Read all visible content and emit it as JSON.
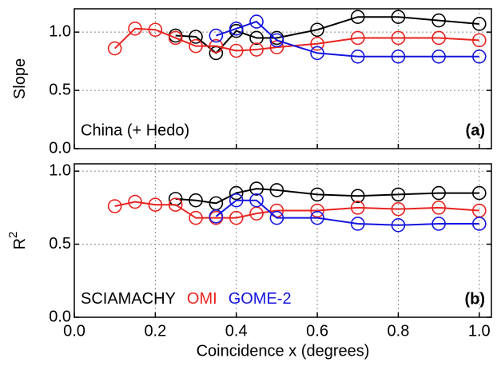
{
  "chart_data": [
    {
      "type": "line",
      "ylabel": "Slope",
      "annotation": "China (+ Hedo)",
      "panel_label": "(a)",
      "xlim": [
        0,
        1.03
      ],
      "ylim": [
        0,
        1.2
      ],
      "xticks": [
        0,
        0.2,
        0.4,
        0.6,
        0.8,
        1
      ],
      "yticks": [
        {
          "value": 0,
          "label": "0.0"
        },
        {
          "value": 0.5,
          "label": "0.5"
        },
        {
          "value": 1,
          "label": "1.0"
        }
      ],
      "grid": true,
      "series": [
        {
          "color": "#000000",
          "x": [
            0.25,
            0.3,
            0.35,
            0.4,
            0.45,
            0.5,
            0.6,
            0.7,
            0.8,
            0.9,
            1.0
          ],
          "values": [
            0.97,
            0.96,
            0.82,
            1.01,
            0.95,
            0.95,
            1.02,
            1.13,
            1.13,
            1.1,
            1.07
          ]
        },
        {
          "color": "#e8231f",
          "x": [
            0.1,
            0.15,
            0.2,
            0.25,
            0.3,
            0.35,
            0.4,
            0.45,
            0.5,
            0.6,
            0.7,
            0.8,
            0.9,
            1.0
          ],
          "values": [
            0.86,
            1.03,
            1.02,
            0.95,
            0.88,
            0.88,
            0.84,
            0.85,
            0.87,
            0.9,
            0.95,
            0.95,
            0.95,
            0.93
          ]
        },
        {
          "color": "#1515e0",
          "x": [
            0.35,
            0.4,
            0.45,
            0.5,
            0.6,
            0.7,
            0.8,
            0.9,
            1.0
          ],
          "values": [
            0.97,
            1.03,
            1.09,
            0.93,
            0.82,
            0.79,
            0.79,
            0.79,
            0.79
          ]
        }
      ]
    },
    {
      "type": "line",
      "ylabel": "R",
      "ylabel_superscript": "2",
      "xlabel": "Coincidence x (degrees)",
      "panel_label": "(b)",
      "xlim": [
        0,
        1.03
      ],
      "ylim": [
        0,
        1.05
      ],
      "xticks": [
        {
          "value": 0,
          "label": "0.0"
        },
        {
          "value": 0.2,
          "label": "0.2"
        },
        {
          "value": 0.4,
          "label": "0.4"
        },
        {
          "value": 0.6,
          "label": "0.6"
        },
        {
          "value": 0.8,
          "label": "0.8"
        },
        {
          "value": 1,
          "label": "1.0"
        }
      ],
      "yticks": [
        {
          "value": 0,
          "label": "0.0"
        },
        {
          "value": 0.5,
          "label": "0.5"
        },
        {
          "value": 1,
          "label": "1.0"
        }
      ],
      "grid": true,
      "legend": "lower left",
      "series": [
        {
          "name": "SCIAMACHY",
          "color": "#000000",
          "x": [
            0.25,
            0.3,
            0.35,
            0.4,
            0.45,
            0.5,
            0.6,
            0.7,
            0.8,
            0.9,
            1.0
          ],
          "values": [
            0.81,
            0.8,
            0.78,
            0.85,
            0.88,
            0.87,
            0.84,
            0.83,
            0.84,
            0.85,
            0.85
          ]
        },
        {
          "name": "OMI",
          "color": "#e8231f",
          "x": [
            0.1,
            0.15,
            0.2,
            0.25,
            0.3,
            0.35,
            0.4,
            0.45,
            0.5,
            0.6,
            0.7,
            0.8,
            0.9,
            1.0
          ],
          "values": [
            0.76,
            0.79,
            0.77,
            0.77,
            0.68,
            0.68,
            0.68,
            0.71,
            0.73,
            0.73,
            0.75,
            0.74,
            0.75,
            0.73
          ]
        },
        {
          "name": "GOME-2",
          "color": "#1515e0",
          "x": [
            0.35,
            0.4,
            0.45,
            0.5,
            0.6,
            0.7,
            0.8,
            0.9,
            1.0
          ],
          "values": [
            0.69,
            0.8,
            0.8,
            0.68,
            0.68,
            0.64,
            0.63,
            0.64,
            0.64
          ]
        }
      ]
    }
  ]
}
